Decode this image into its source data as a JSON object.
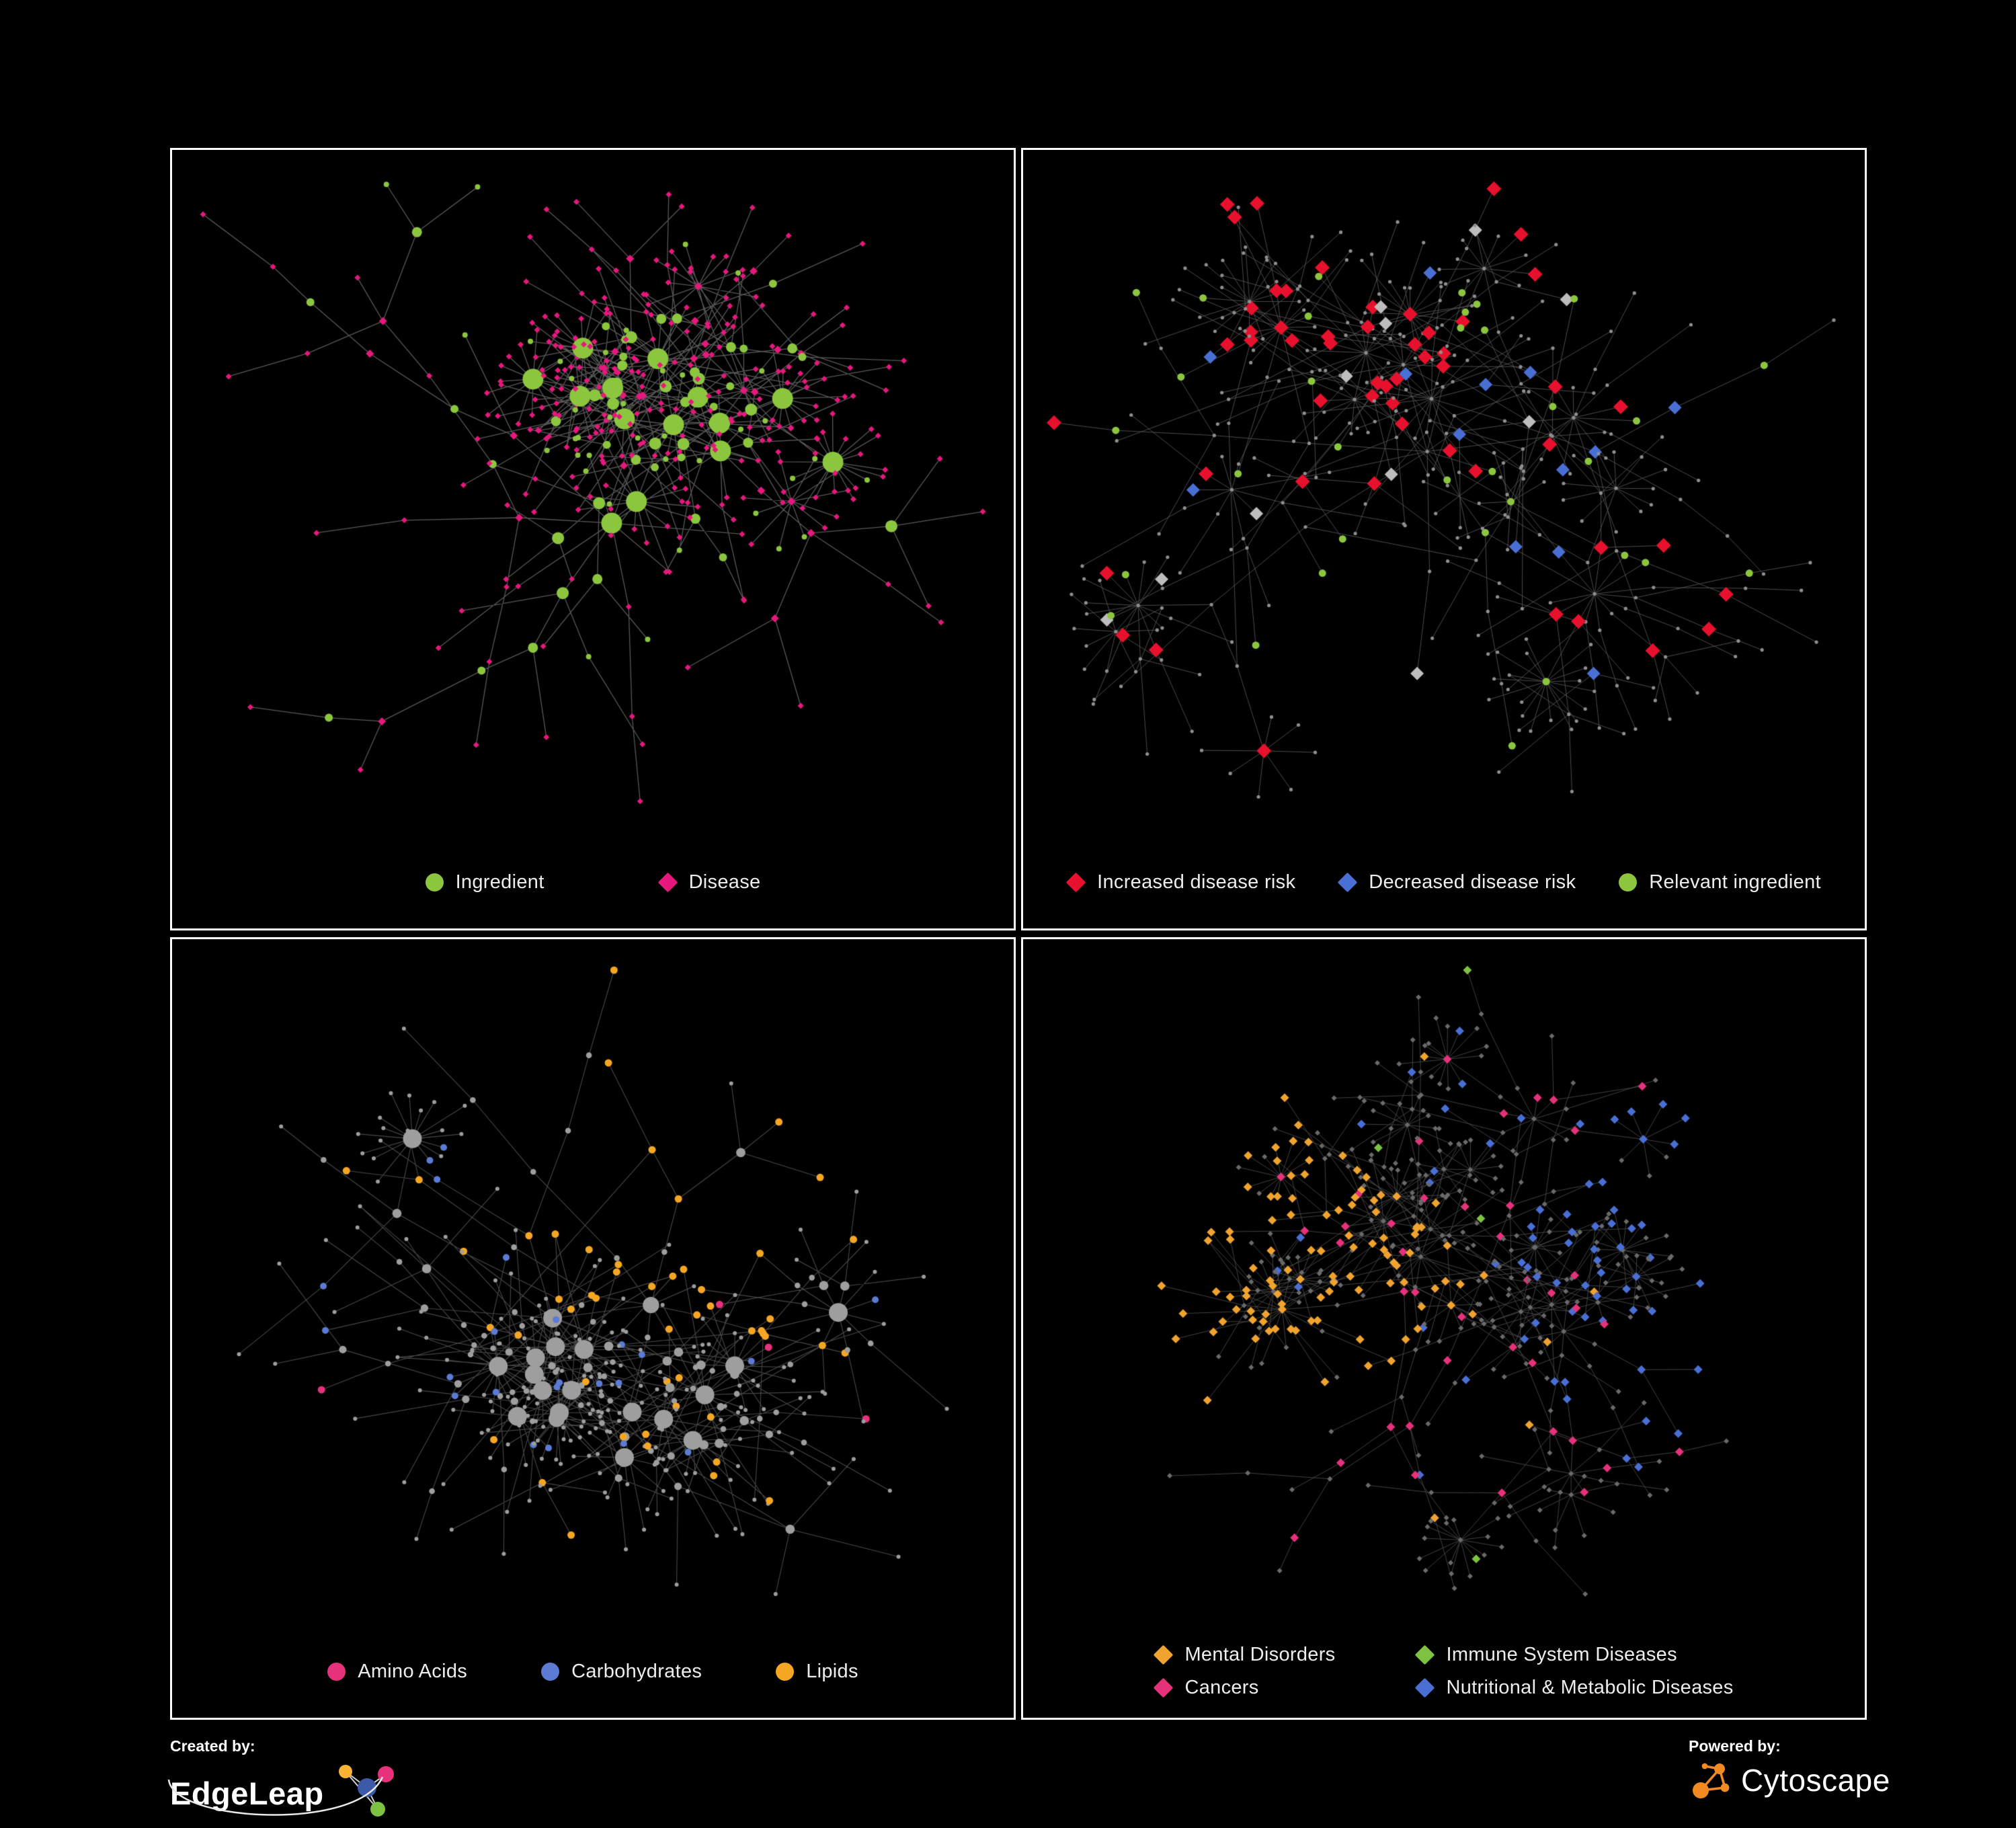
{
  "page": {
    "background": "#000000",
    "panel_border": "#FFFFFF",
    "legend_text_color": "#EDEDED"
  },
  "panels": [
    {
      "name": "ingredient-disease",
      "legend_gap": 170,
      "legend": [
        {
          "label": "Ingredient",
          "shape": "circle",
          "color": "#8CC63F"
        },
        {
          "label": "Disease",
          "shape": "diamond",
          "color": "#E6187D"
        }
      ],
      "network": {
        "seed": 7,
        "node_count": 430,
        "step": 92,
        "squash": 0.85,
        "edge": {
          "color": "#6E6E6E",
          "width": 1.3,
          "alpha": 0.8
        },
        "mode": "duo",
        "duo": {
          "hub_shape": "circle",
          "hub_color": "#8CC63F",
          "leaf_shape": "diamond",
          "leaf_color": "#E6187D"
        }
      }
    },
    {
      "name": "disease-risk",
      "legend_gap": 64,
      "legend": [
        {
          "label": "Increased disease risk",
          "shape": "diamond",
          "color": "#E8112D"
        },
        {
          "label": "Decreased disease risk",
          "shape": "diamond",
          "color": "#4A6FD4"
        },
        {
          "label": "Relevant ingredient",
          "shape": "circle",
          "color": "#8CC63F"
        }
      ],
      "network": {
        "seed": 23,
        "node_count": 440,
        "step": 95,
        "squash": 0.85,
        "edge": {
          "color": "#585858",
          "width": 1.0,
          "alpha": 0.85
        },
        "base": {
          "shape": "circle",
          "color": "#8F8F8F",
          "size": 2.6
        },
        "highlights": [
          {
            "shape": "diamond",
            "color": "#E8112D",
            "size": 11,
            "prob": 0.18,
            "max_depth": 4
          },
          {
            "shape": "circle",
            "color": "#8CC63F",
            "size": 5.5,
            "prob": 0.12,
            "max_depth": 4
          },
          {
            "shape": "diamond",
            "color": "#4A6FD4",
            "size": 10,
            "prob": 0.06,
            "max_depth": 4
          },
          {
            "shape": "diamond",
            "color": "#BDBDBD",
            "size": 10,
            "prob": 0.045,
            "max_depth": 4
          },
          {
            "shape": "diamond",
            "color": "#4A6FD4",
            "size": 10,
            "prob": 0.01
          }
        ]
      }
    },
    {
      "name": "nutrient-classes",
      "legend_gap": 110,
      "legend": [
        {
          "label": "Amino Acids",
          "shape": "circle",
          "color": "#E6317B"
        },
        {
          "label": "Carbohydrates",
          "shape": "circle",
          "color": "#5B7BD5"
        },
        {
          "label": "Lipids",
          "shape": "circle",
          "color": "#F5A623"
        }
      ],
      "network": {
        "seed": 41,
        "node_count": 420,
        "step": 94,
        "squash": 0.85,
        "edge": {
          "color": "#5A5A5A",
          "width": 1.1,
          "alpha": 0.8
        },
        "base": {
          "shape": "circle",
          "color": "#9E9E9E",
          "size": 3.0
        },
        "size_by_degree": true,
        "highlights": [
          {
            "shape": "circle",
            "color": "#F5A623",
            "size": 5.5,
            "prob": 0.5,
            "sector": [
              0.7,
              1.02
            ],
            "max_depth": 6
          },
          {
            "shape": "circle",
            "color": "#F5A623",
            "size": 5.5,
            "prob": 0.05
          },
          {
            "shape": "circle",
            "color": "#E6317B",
            "size": 5.5,
            "prob": 0.07,
            "min_depth": 5
          },
          {
            "shape": "circle",
            "color": "#5B7BD5",
            "size": 5.0,
            "prob": 0.05,
            "max_depth": 4
          }
        ]
      }
    },
    {
      "name": "disease-categories",
      "legend_columns": 2,
      "legend": [
        {
          "label": "Mental Disorders",
          "shape": "diamond",
          "color": "#F0A32F"
        },
        {
          "label": "Immune System Diseases",
          "shape": "diamond",
          "color": "#7DC242"
        },
        {
          "label": "Cancers",
          "shape": "diamond",
          "color": "#E6317B"
        },
        {
          "label": "Nutritional & Metabolic Diseases",
          "shape": "diamond",
          "color": "#4A6FD4"
        }
      ],
      "network": {
        "seed": 59,
        "node_count": 520,
        "step": 96,
        "squash": 0.85,
        "edge": {
          "color": "#4C4C4C",
          "width": 1.0,
          "alpha": 0.85
        },
        "base": {
          "shape": "diamond",
          "color": "#6A6A6A",
          "size": 4.0
        },
        "highlights": [
          {
            "shape": "diamond",
            "color": "#F0A32F",
            "size": 6.5,
            "prob": 0.5,
            "sector": [
              0.38,
              0.62
            ],
            "min_depth": 2
          },
          {
            "shape": "diamond",
            "color": "#E6317B",
            "size": 6.5,
            "prob": 0.2,
            "max_depth": 4
          },
          {
            "shape": "diamond",
            "color": "#4A6FD4",
            "size": 6.5,
            "prob": 0.32,
            "sector": [
              0.84,
              1.16
            ],
            "min_depth": 2
          },
          {
            "shape": "diamond",
            "color": "#4A6FD4",
            "size": 6.5,
            "prob": 0.05
          },
          {
            "shape": "diamond",
            "color": "#F0A32F",
            "size": 6.5,
            "prob": 0.035
          },
          {
            "shape": "diamond",
            "color": "#7DC242",
            "size": 6.5,
            "prob": 0.02,
            "max_depth": 6
          }
        ]
      }
    }
  ],
  "footer": {
    "created_by_label": "Created by:",
    "created_by_name": "EdgeLeap",
    "powered_by_label": "Powered by:",
    "powered_by_name": "Cytoscape",
    "edgeleap_colors": [
      "#F9B233",
      "#E6317B",
      "#3B5BA9",
      "#7DC242"
    ],
    "cytoscape_color": "#F18A21"
  }
}
